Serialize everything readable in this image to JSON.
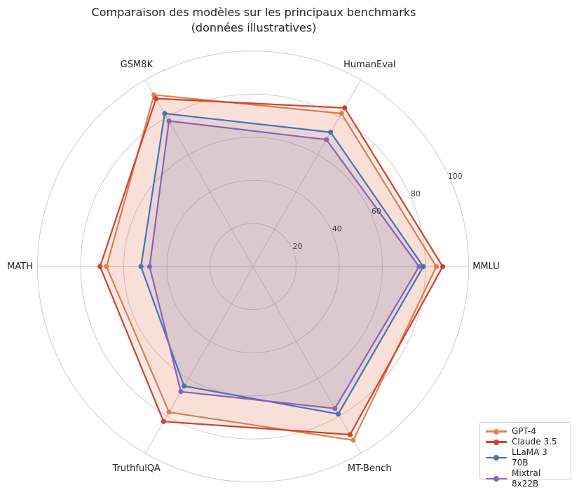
{
  "title": {
    "line1": "Comparaison des modèles sur les principaux benchmarks",
    "line2": "(données illustratives)"
  },
  "chart_data": {
    "type": "radar",
    "categories": [
      "MMLU",
      "HumanEval",
      "GSM8K",
      "MATH",
      "TruthfulQA",
      "MT-Bench"
    ],
    "radial_ticks": [
      20,
      40,
      60,
      80,
      100
    ],
    "rmax": 100,
    "grid_on": true,
    "grid_color": "#cccccc",
    "tick_label_color": "#3d3d3d",
    "axis_label_color": "#262626",
    "fill_opacity": 0.1,
    "legend_position": "lower right",
    "series": [
      {
        "name": "GPT-4",
        "color": "#dd8452",
        "values": [
          85,
          82,
          92,
          68,
          78,
          93
        ]
      },
      {
        "name": "Claude 3.5",
        "color": "#d5402e",
        "values": [
          88,
          85,
          90,
          71,
          83,
          90
        ]
      },
      {
        "name": "LLaMA 3 70B",
        "color": "#4c72b0",
        "values": [
          79,
          72,
          82,
          52,
          64,
          79
        ]
      },
      {
        "name": "Mixtral 8x22B",
        "color": "#8a63b2",
        "values": [
          77,
          68,
          78,
          48,
          67,
          76
        ]
      }
    ]
  }
}
